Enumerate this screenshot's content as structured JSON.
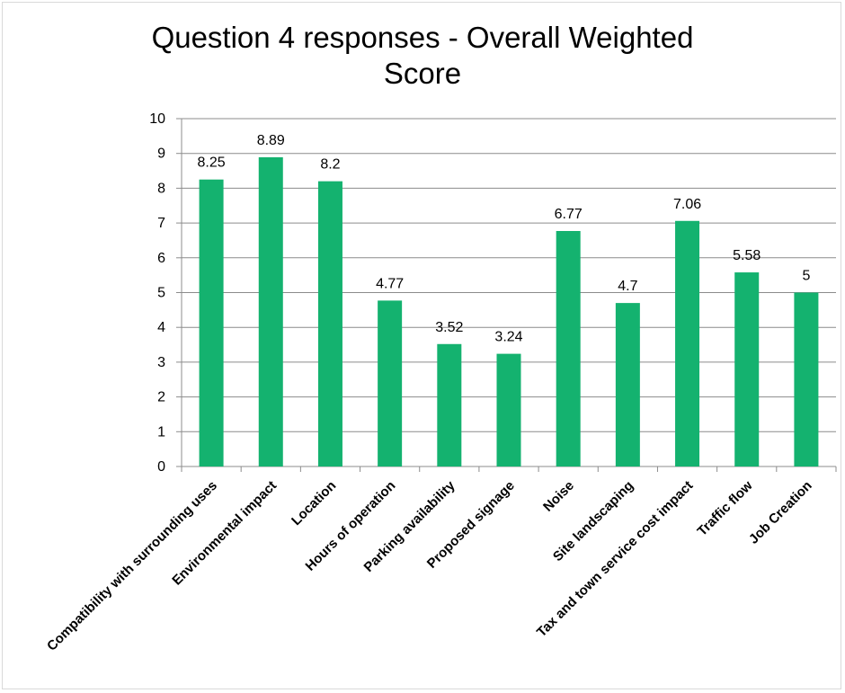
{
  "chart_data": {
    "type": "bar",
    "title_line1": "Question 4 responses - Overall Weighted",
    "title_line2": "Score",
    "categories": [
      "Compatibility with surrounding uses",
      "Environmental impact",
      "Location",
      "Hours of operation",
      "Parking availability",
      "Proposed signage",
      "Noise",
      "Site landscaping",
      "Tax and town service cost impact",
      "Traffic flow",
      "Job Creation"
    ],
    "values": [
      8.25,
      8.89,
      8.2,
      4.77,
      3.52,
      3.24,
      6.77,
      4.7,
      7.06,
      5.58,
      5
    ],
    "value_labels": [
      "8.25",
      "8.89",
      "8.2",
      "4.77",
      "3.52",
      "3.24",
      "6.77",
      "4.7",
      "7.06",
      "5.58",
      "5"
    ],
    "ylim": [
      0,
      10
    ],
    "yticks": [
      "0",
      "1",
      "2",
      "3",
      "4",
      "5",
      "6",
      "7",
      "8",
      "9",
      "10"
    ],
    "grid": true,
    "legend": "none",
    "bar_color": "#14b26f"
  }
}
